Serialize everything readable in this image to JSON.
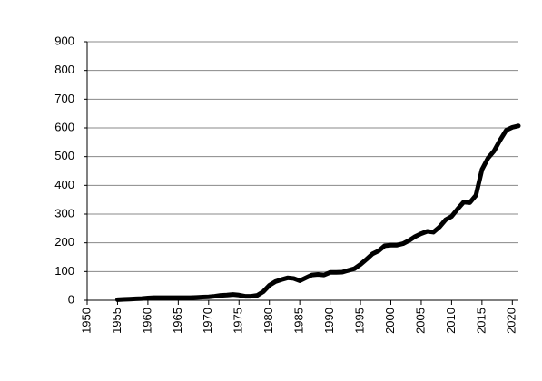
{
  "chart_data": {
    "type": "line",
    "x": [
      1955,
      1956,
      1957,
      1958,
      1959,
      1960,
      1961,
      1962,
      1963,
      1964,
      1965,
      1966,
      1967,
      1968,
      1969,
      1970,
      1971,
      1972,
      1973,
      1974,
      1975,
      1976,
      1977,
      1978,
      1979,
      1980,
      1981,
      1982,
      1983,
      1984,
      1985,
      1986,
      1987,
      1988,
      1989,
      1990,
      1991,
      1992,
      1993,
      1994,
      1995,
      1996,
      1997,
      1998,
      1999,
      2000,
      2001,
      2002,
      2003,
      2004,
      2005,
      2006,
      2007,
      2008,
      2009,
      2010,
      2011,
      2012,
      2013,
      2014,
      2015,
      2016,
      2017,
      2018,
      2019,
      2020,
      2021
    ],
    "values": [
      2,
      3,
      4,
      5,
      6,
      8,
      9,
      9,
      9,
      9,
      9,
      9,
      9,
      10,
      11,
      12,
      14,
      17,
      18,
      20,
      18,
      14,
      14,
      17,
      30,
      52,
      65,
      72,
      78,
      76,
      68,
      78,
      88,
      90,
      88,
      97,
      97,
      98,
      104,
      110,
      125,
      143,
      162,
      172,
      190,
      192,
      192,
      197,
      208,
      222,
      232,
      240,
      237,
      255,
      280,
      292,
      318,
      342,
      340,
      365,
      455,
      495,
      520,
      558,
      592,
      602,
      607
    ],
    "color": "#000000",
    "xlim": [
      1950,
      2021
    ],
    "xticks": [
      1950,
      1955,
      1960,
      1965,
      1970,
      1975,
      1980,
      1985,
      1990,
      1995,
      2000,
      2005,
      2010,
      2015,
      2020
    ],
    "ylim": [
      0,
      900
    ],
    "yticks": [
      0,
      100,
      200,
      300,
      400,
      500,
      600,
      700,
      800,
      900
    ],
    "grid": true
  }
}
